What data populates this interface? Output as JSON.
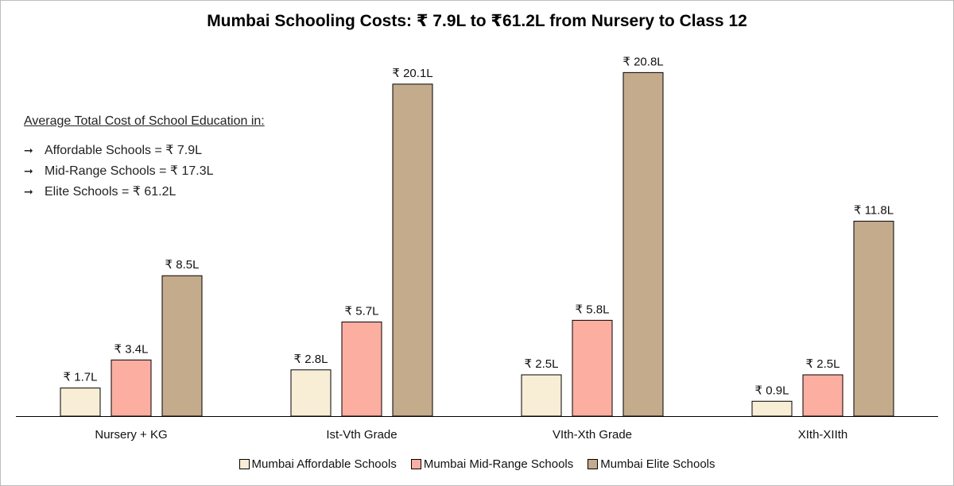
{
  "chart_data": {
    "type": "bar",
    "title": "Mumbai Schooling Costs: ₹ 7.9L to ₹61.2L from Nursery to Class 12",
    "categories": [
      "Nursery + KG",
      "Ist-Vth Grade",
      "VIth-Xth Grade",
      "XIth-XIIth"
    ],
    "series": [
      {
        "name": "Mumbai Affordable Schools",
        "values": [
          1.7,
          2.8,
          2.5,
          0.9
        ],
        "labels": [
          "₹ 1.7L",
          "₹ 2.8L",
          "₹ 2.5L",
          "₹ 0.9L"
        ],
        "color": "#f8eed5"
      },
      {
        "name": "Mumbai Mid-Range Schools",
        "values": [
          3.4,
          5.7,
          5.8,
          2.5
        ],
        "labels": [
          "₹ 3.4L",
          "₹ 5.7L",
          "₹ 5.8L",
          "₹ 2.5L"
        ],
        "color": "#fcaea0"
      },
      {
        "name": "Mumbai Elite Schools",
        "values": [
          8.5,
          20.1,
          20.8,
          11.8
        ],
        "labels": [
          "₹ 8.5L",
          "₹ 20.1L",
          "₹ 20.8L",
          "₹ 11.8L"
        ],
        "color": "#c4ab8c"
      }
    ],
    "ylim": [
      0,
      21
    ],
    "grid": false,
    "legend_position": "bottom"
  },
  "annotation": {
    "heading": "Average Total Cost of School Education in:",
    "items": [
      "Affordable Schools = ₹ 7.9L",
      "Mid-Range Schools = ₹ 17.3L",
      "Elite Schools = ₹ 61.2L"
    ]
  }
}
